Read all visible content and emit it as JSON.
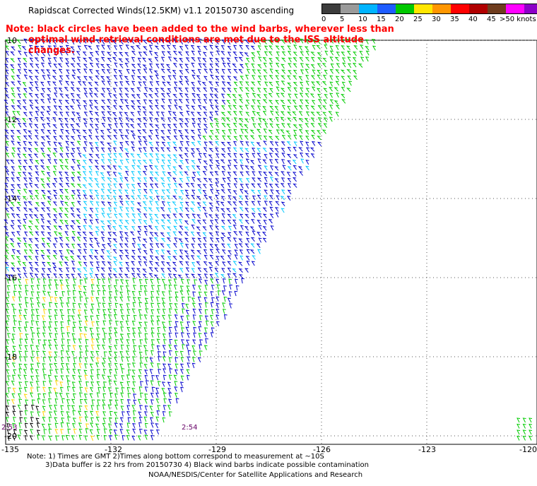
{
  "header": {
    "title": "Rapidscat Corrected Winds(12.5KM) v1.1 20150730 ascending",
    "note_line1": "Note: black circles have been added to the wind barbs, wherever less than",
    "note_line2": "optimal wind retrieval conditions are met due to the ISS altitude changes."
  },
  "colorbar": {
    "labels": [
      "0",
      "5",
      "10",
      "15",
      "20",
      "25",
      "30",
      "35",
      "40",
      "45",
      ">50 knots"
    ],
    "colors": [
      "#3c3c3c",
      "#9a9a9a",
      "#00b4ff",
      "#1e5cff",
      "#00c800",
      "#ffe600",
      "#ff9600",
      "#ff0000",
      "#b00000",
      "#6e3c1e",
      "#ff00ff",
      "#8c00c8",
      "#3c0096"
    ]
  },
  "map": {
    "lat_labels": [
      "-10",
      "-12",
      "-14",
      "-16",
      "-18",
      "-20"
    ],
    "lon_labels": [
      "-135",
      "-132",
      "-129",
      "-126",
      "-123",
      "-120"
    ],
    "time_labels": [
      "2:53",
      "2:54"
    ],
    "barb_colors": {
      "low": "#00c8ff",
      "moderate": "#0000cc",
      "fresh": "#00cc00",
      "strong": "#ffd200",
      "contaminated": "#000000"
    }
  },
  "footer": {
    "line1": "Note: 1) Times are GMT 2)Times along bottom correspond to measurement at ~10S",
    "line2": "3)Data buffer is 22 hrs from 20150730 4) Black wind barbs indicate possible contamination",
    "credit": "NOAA/NESDIS/Center for Satellite Applications and Research"
  }
}
